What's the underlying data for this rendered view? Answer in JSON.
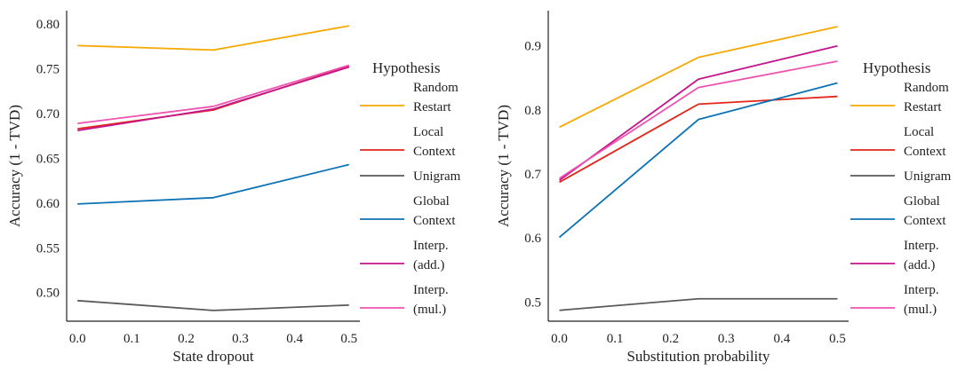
{
  "chart_data": [
    {
      "type": "line",
      "xlabel": "State dropout",
      "ylabel": "Accuracy (1 - TVD)",
      "x": [
        0.0,
        0.25,
        0.5
      ],
      "xlim": [
        -0.02,
        0.52
      ],
      "ylim": [
        0.468,
        0.815
      ],
      "xticks": [
        0.0,
        0.1,
        0.2,
        0.3,
        0.4,
        0.5
      ],
      "xtick_labels": [
        "0.0",
        "0.1",
        "0.2",
        "0.3",
        "0.4",
        "0.5"
      ],
      "yticks": [
        0.5,
        0.55,
        0.6,
        0.65,
        0.7,
        0.75,
        0.8
      ],
      "ytick_labels": [
        "0.50",
        "0.55",
        "0.60",
        "0.65",
        "0.70",
        "0.75",
        "0.80"
      ],
      "grid": false,
      "legend_title": "Hypothesis",
      "legend_position": "right",
      "series": [
        {
          "name": [
            "Random",
            "Restart"
          ],
          "color": "#f7a800",
          "values": [
            0.776,
            0.771,
            0.798
          ]
        },
        {
          "name": [
            "Local",
            "Context"
          ],
          "color": "#e3261a",
          "values": [
            0.683,
            0.704,
            0.753
          ]
        },
        {
          "name": [
            "Unigram"
          ],
          "color": "#5a5a5a",
          "values": [
            0.491,
            0.48,
            0.486
          ]
        },
        {
          "name": [
            "Global",
            "Context"
          ],
          "color": "#0b72b5",
          "values": [
            0.599,
            0.606,
            0.643
          ]
        },
        {
          "name": [
            "Interp.",
            "(add.)"
          ],
          "color": "#c4168a",
          "values": [
            0.681,
            0.705,
            0.752
          ]
        },
        {
          "name": [
            "Interp.",
            "(mul.)"
          ],
          "color": "#f052b0",
          "values": [
            0.689,
            0.708,
            0.754
          ]
        }
      ]
    },
    {
      "type": "line",
      "xlabel": "Substitution probability",
      "ylabel": "Accuracy (1 - TVD)",
      "x": [
        0.0,
        0.25,
        0.5
      ],
      "xlim": [
        -0.02,
        0.52
      ],
      "ylim": [
        0.47,
        0.955
      ],
      "xticks": [
        0.0,
        0.1,
        0.2,
        0.3,
        0.4,
        0.5
      ],
      "xtick_labels": [
        "0.0",
        "0.1",
        "0.2",
        "0.3",
        "0.4",
        "0.5"
      ],
      "yticks": [
        0.5,
        0.6,
        0.7,
        0.8,
        0.9
      ],
      "ytick_labels": [
        "0.5",
        "0.6",
        "0.7",
        "0.8",
        "0.9"
      ],
      "grid": false,
      "legend_title": "Hypothesis",
      "legend_position": "right",
      "series": [
        {
          "name": [
            "Random",
            "Restart"
          ],
          "color": "#f7a800",
          "values": [
            0.773,
            0.882,
            0.93
          ]
        },
        {
          "name": [
            "Local",
            "Context"
          ],
          "color": "#e3261a",
          "values": [
            0.687,
            0.809,
            0.821
          ]
        },
        {
          "name": [
            "Unigram"
          ],
          "color": "#5a5a5a",
          "values": [
            0.487,
            0.505,
            0.505
          ]
        },
        {
          "name": [
            "Global",
            "Context"
          ],
          "color": "#0b72b5",
          "values": [
            0.601,
            0.785,
            0.842
          ]
        },
        {
          "name": [
            "Interp.",
            "(add.)"
          ],
          "color": "#c4168a",
          "values": [
            0.69,
            0.848,
            0.9
          ]
        },
        {
          "name": [
            "Interp.",
            "(mul.)"
          ],
          "color": "#f052b0",
          "values": [
            0.693,
            0.835,
            0.876
          ]
        }
      ]
    }
  ]
}
